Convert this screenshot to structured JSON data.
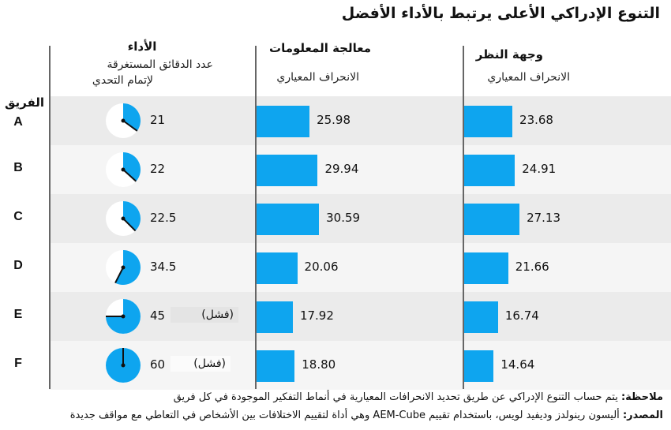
{
  "title": "التنوع الإدراكي الأعلى يرتبط بالأداء الأفضل",
  "team_label": "الفريق",
  "columns": {
    "performance": {
      "title": "الأداء",
      "sub1": "عدد الدقائق المستغرقة",
      "sub2": "لإتمام التحدي"
    },
    "information": {
      "title": "معالجة المعلومات",
      "sub": "الانحراف المعياري"
    },
    "perspective": {
      "title": "وجهة النظر",
      "sub": "الانحراف المعياري"
    }
  },
  "fail_label": "(فشل)",
  "note": {
    "label": "ملاحظة:",
    "text": " يتم حساب التنوع الإدراكي عن طريق تحديد الانحرافات المعيارية في أنماط التفكير الموجودة في كل فريق"
  },
  "source": {
    "label": "المصدر:",
    "text": " أليسون رينولدز وديفيد لويس، باستخدام تقييم AEM-Cube وهي أداة لتقييم الاختلافات بين الأشخاص في التعاطي مع مواقف جديدة"
  },
  "colors": {
    "bar": "#0ea5ef",
    "row_dark": "#ebebeb",
    "row_light": "#f5f5f5"
  },
  "chart_data": {
    "type": "table",
    "categories": [
      "A",
      "B",
      "C",
      "D",
      "E",
      "F"
    ],
    "performance_minutes": {
      "values": [
        21,
        22,
        22.5,
        34.5,
        45,
        60
      ],
      "labels": [
        "21",
        "22",
        "22.5",
        "34.5",
        "45",
        "60"
      ],
      "max": 60,
      "failed": [
        false,
        false,
        false,
        false,
        true,
        true
      ]
    },
    "series": [
      {
        "name": "معالجة المعلومات",
        "values": [
          25.98,
          29.94,
          30.59,
          20.06,
          17.92,
          18.8
        ],
        "labels": [
          "25.98",
          "29.94",
          "30.59",
          "20.06",
          "17.92",
          "18.80"
        ]
      },
      {
        "name": "وجهة النظر",
        "values": [
          23.68,
          24.91,
          27.13,
          21.66,
          16.74,
          14.64
        ],
        "labels": [
          "23.68",
          "24.91",
          "27.13",
          "21.66",
          "16.74",
          "14.64"
        ]
      }
    ]
  }
}
